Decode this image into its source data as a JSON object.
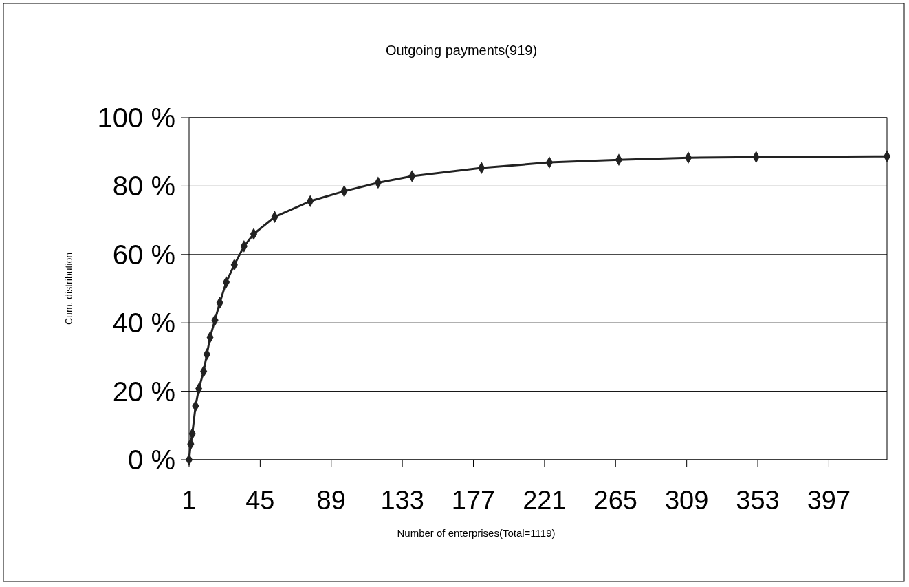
{
  "chart_data": {
    "type": "line",
    "title": "Outgoing payments(919)",
    "xlabel": "Number of enterprises(Total=1119)",
    "ylabel": "Cum. distribution",
    "x": [
      1,
      2,
      3,
      5,
      7,
      10,
      12,
      14,
      17,
      20,
      24,
      29,
      35,
      41,
      54,
      76,
      97,
      118,
      139,
      182,
      224,
      267,
      310,
      352,
      433
    ],
    "series": [
      {
        "color": "#222222",
        "values": [
          0,
          4.6,
          7.6,
          15.7,
          20.7,
          25.8,
          30.8,
          35.8,
          40.8,
          45.9,
          51.9,
          57,
          62.4,
          66,
          71,
          75.6,
          78.5,
          81,
          82.9,
          85.3,
          86.9,
          87.7,
          88.3,
          88.5,
          88.7
        ]
      }
    ],
    "xlim": [
      1,
      433
    ],
    "xticks": [
      1,
      45,
      89,
      133,
      177,
      221,
      265,
      309,
      353,
      397
    ],
    "ylim": [
      0,
      100
    ],
    "yticks": [
      {
        "value": 0,
        "label": "0 %"
      },
      {
        "value": 20,
        "label": "20 %"
      },
      {
        "value": 40,
        "label": "40 %"
      },
      {
        "value": 60,
        "label": "60 %"
      },
      {
        "value": 80,
        "label": "80 %"
      },
      {
        "value": 100,
        "label": "100 %"
      }
    ],
    "grid": "y",
    "marker": "diamond",
    "line_style": "solid"
  }
}
